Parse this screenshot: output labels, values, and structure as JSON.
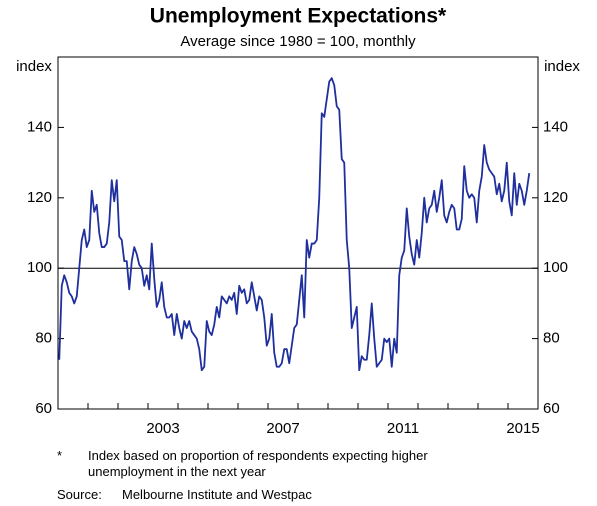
{
  "chart_data": {
    "type": "line",
    "title": "Unemployment Expectations*",
    "subtitle": "Average since 1980 = 100, monthly",
    "ylabel": "index",
    "y2label": "index",
    "color": "#1f2f9e",
    "ylim": [
      60,
      160
    ],
    "yticks": [
      60,
      80,
      100,
      120,
      140
    ],
    "y2lim": [
      60,
      160
    ],
    "y2ticks": [
      60,
      80,
      100,
      120,
      140
    ],
    "reference_line": 100,
    "categories": [
      null,
      null,
      null,
      null,
      null,
      null,
      null,
      null,
      null,
      null,
      null,
      null,
      null,
      null,
      null,
      null,
      null,
      null,
      null,
      null,
      null,
      null,
      null,
      null,
      null,
      null,
      null,
      null,
      null,
      null,
      null,
      null,
      null,
      null,
      null,
      null,
      null,
      null,
      null,
      null,
      null,
      "2003",
      null,
      null,
      null,
      null,
      null,
      null,
      null,
      null,
      null,
      null,
      null,
      null,
      null,
      null,
      null,
      null,
      null,
      null,
      null,
      null,
      null,
      null,
      null,
      null,
      null,
      null,
      null,
      null,
      null,
      null,
      null,
      null,
      null,
      null,
      null,
      null,
      null,
      null,
      null,
      null,
      null,
      null,
      null,
      null,
      null,
      null,
      null,
      "2007",
      null,
      null,
      null,
      null,
      null,
      null,
      null,
      null,
      null,
      null,
      null,
      null,
      null,
      null,
      null,
      null,
      null,
      null,
      null,
      null,
      null,
      null,
      null,
      null,
      null,
      null,
      null,
      null,
      null,
      null,
      null,
      null,
      null,
      null,
      null,
      null,
      null,
      null,
      null,
      null,
      null,
      null,
      null,
      null,
      null,
      null,
      null,
      "2011",
      null,
      null,
      null,
      null,
      null,
      null,
      null,
      null,
      null,
      null,
      null,
      null,
      null,
      null,
      null,
      null,
      null,
      null,
      null,
      null,
      null,
      null,
      null,
      null,
      null,
      null,
      null,
      null,
      null,
      null,
      null,
      null,
      null,
      null,
      null,
      null,
      null,
      null,
      null,
      null,
      null,
      null,
      null,
      null,
      null,
      null,
      null,
      "2015",
      null,
      null,
      null
    ],
    "values": [
      74,
      95,
      98,
      96,
      93,
      92,
      90,
      92,
      100,
      108,
      111,
      106,
      108,
      122,
      116,
      118,
      110,
      106,
      106,
      107,
      113,
      125,
      119,
      125,
      109,
      108,
      102,
      102,
      94,
      102,
      106,
      104,
      101,
      100,
      95,
      98,
      94,
      107,
      97,
      89,
      91,
      96,
      89,
      86,
      86,
      87,
      81,
      87,
      83,
      80,
      85,
      83,
      85,
      82,
      81,
      80,
      77,
      71,
      72,
      85,
      82,
      81,
      84,
      89,
      86,
      92,
      91,
      90,
      92,
      91,
      93,
      87,
      95,
      93,
      94,
      90,
      91,
      96,
      92,
      88,
      92,
      91,
      86,
      78,
      80,
      87,
      76,
      72,
      72,
      73,
      77,
      77,
      73,
      78,
      83,
      84,
      91,
      98,
      86,
      108,
      103,
      107,
      107,
      108,
      120,
      144,
      143,
      148,
      153,
      154,
      152,
      146,
      145,
      131,
      130,
      108,
      100,
      83,
      86,
      89,
      71,
      75,
      74,
      74,
      81,
      90,
      80,
      72,
      73,
      74,
      80,
      79,
      80,
      72,
      80,
      76,
      98,
      103,
      105,
      117,
      109,
      104,
      101,
      108,
      103,
      110,
      120,
      113,
      117,
      118,
      122,
      116,
      120,
      125,
      115,
      113,
      116,
      118,
      117,
      111,
      111,
      114,
      129,
      122,
      120,
      121,
      120,
      113,
      122,
      126,
      135,
      130,
      128,
      127,
      126,
      121,
      124,
      119,
      122,
      130,
      119,
      115,
      127,
      118,
      124,
      122,
      118,
      122,
      127
    ],
    "footnote_mark": "*",
    "footnote": "Index based on proportion of respondents expecting higher unemployment in the next year",
    "source_label": "Source:",
    "source": "Melbourne Institute and Westpac"
  }
}
